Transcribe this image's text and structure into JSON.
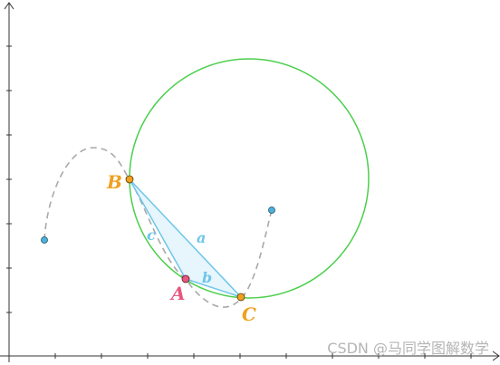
{
  "points": {
    "A": {
      "label": "A",
      "color": "#e8577e"
    },
    "B": {
      "label": "B",
      "color": "#f0a020"
    },
    "C": {
      "label": "C",
      "color": "#f0a020"
    }
  },
  "sides": {
    "a": {
      "label": "a",
      "color": "#6ec6ea"
    },
    "b": {
      "label": "b",
      "color": "#6ec6ea"
    },
    "c": {
      "label": "c",
      "color": "#6ec6ea"
    }
  },
  "colors": {
    "circle": "#4ccf4c",
    "triangle_fill": "#dff2fb",
    "triangle_stroke": "#6ec6ea",
    "curve": "#a9a9a9",
    "endpoint": "#4db2da",
    "axis": "#333333"
  },
  "watermark": "CSDN @马同学图解数学"
}
